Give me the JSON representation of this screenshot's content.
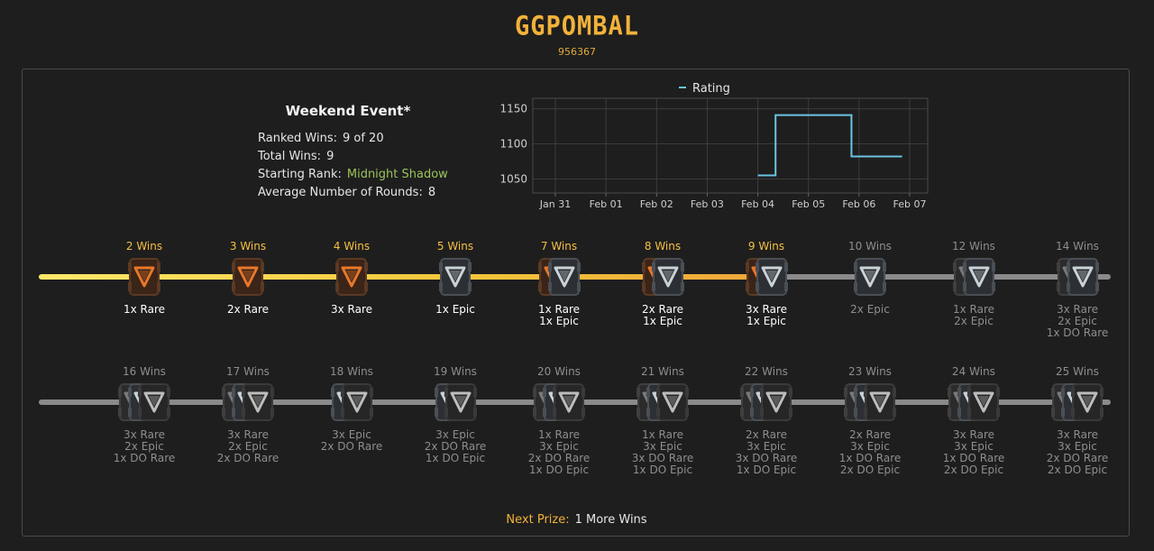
{
  "player": {
    "name": "GGPOMBAL",
    "id": "956367"
  },
  "event": {
    "title": "Weekend Event*",
    "stats": [
      {
        "label": "Ranked Wins:",
        "value": "9 of 20"
      },
      {
        "label": "Total Wins:",
        "value": "9"
      },
      {
        "label": "Starting Rank:",
        "value": "Midnight Shadow"
      },
      {
        "label": "Average Number of Rounds:",
        "value": "8"
      }
    ]
  },
  "colors": {
    "accent": "#f2b23a",
    "rank": "#9bc35a",
    "line": "#6cc3e4",
    "track_active": "#f5c63a",
    "track_locked": "#8a8a8a"
  },
  "chart_data": {
    "type": "line",
    "title": "",
    "legend": "top",
    "series": [
      {
        "name": "Rating",
        "style": "step",
        "points": [
          {
            "x": "Feb 04 (early)",
            "y": 1055
          },
          {
            "x": "Feb 04 (mid)",
            "y": 1055
          },
          {
            "x": "Feb 04 (mid)",
            "y": 1141
          },
          {
            "x": "Feb 05 (late)",
            "y": 1141
          },
          {
            "x": "Feb 05 (late)",
            "y": 1082
          },
          {
            "x": "Feb 06 (late)",
            "y": 1082
          }
        ]
      }
    ],
    "x_ticks": [
      "Jan 31",
      "Feb 01",
      "Feb 02",
      "Feb 03",
      "Feb 04",
      "Feb 05",
      "Feb 06",
      "Feb 07"
    ],
    "y_ticks": [
      1050,
      1100,
      1150
    ],
    "ylim": [
      1030,
      1165
    ],
    "grid": true
  },
  "milestones_row1": [
    {
      "label": "2 Wins",
      "rewards": [
        "1x Rare"
      ],
      "earned": true,
      "chests": [
        "rare"
      ]
    },
    {
      "label": "3 Wins",
      "rewards": [
        "2x Rare"
      ],
      "earned": true,
      "chests": [
        "rare"
      ]
    },
    {
      "label": "4 Wins",
      "rewards": [
        "3x Rare"
      ],
      "earned": true,
      "chests": [
        "rare"
      ]
    },
    {
      "label": "5 Wins",
      "rewards": [
        "1x Epic"
      ],
      "earned": true,
      "chests": [
        "epic"
      ]
    },
    {
      "label": "7 Wins",
      "rewards": [
        "1x Rare",
        "1x Epic"
      ],
      "earned": true,
      "chests": [
        "rare",
        "epic"
      ]
    },
    {
      "label": "8 Wins",
      "rewards": [
        "2x Rare",
        "1x Epic"
      ],
      "earned": true,
      "chests": [
        "rare",
        "epic"
      ]
    },
    {
      "label": "9 Wins",
      "rewards": [
        "3x Rare",
        "1x Epic"
      ],
      "earned": true,
      "chests": [
        "rare",
        "epic"
      ]
    },
    {
      "label": "10 Wins",
      "rewards": [
        "2x Epic"
      ],
      "earned": false,
      "chests": [
        "epic"
      ]
    },
    {
      "label": "12 Wins",
      "rewards": [
        "1x Rare",
        "2x Epic"
      ],
      "earned": false,
      "chests": [
        "rare",
        "epic"
      ]
    },
    {
      "label": "14 Wins",
      "rewards": [
        "3x Rare",
        "2x Epic",
        "1x DO Rare"
      ],
      "earned": false,
      "chests": [
        "rare",
        "epic"
      ]
    }
  ],
  "milestones_row2": [
    {
      "label": "16 Wins",
      "rewards": [
        "3x Rare",
        "2x Epic",
        "1x DO Rare"
      ],
      "earned": false,
      "chests": [
        "rare",
        "epic",
        "do"
      ]
    },
    {
      "label": "17 Wins",
      "rewards": [
        "3x Rare",
        "2x Epic",
        "2x DO Rare"
      ],
      "earned": false,
      "chests": [
        "rare",
        "epic",
        "do"
      ]
    },
    {
      "label": "18 Wins",
      "rewards": [
        "3x Epic",
        "2x DO Rare"
      ],
      "earned": false,
      "chests": [
        "epic",
        "do"
      ]
    },
    {
      "label": "19 Wins",
      "rewards": [
        "3x Epic",
        "2x DO Rare",
        "1x DO Epic"
      ],
      "earned": false,
      "chests": [
        "epic",
        "do"
      ]
    },
    {
      "label": "20 Wins",
      "rewards": [
        "1x Rare",
        "3x Epic",
        "2x DO Rare",
        "1x DO Epic"
      ],
      "earned": false,
      "chests": [
        "rare",
        "epic",
        "do"
      ]
    },
    {
      "label": "21 Wins",
      "rewards": [
        "1x Rare",
        "3x Epic",
        "3x DO Rare",
        "1x DO Epic"
      ],
      "earned": false,
      "chests": [
        "rare",
        "epic",
        "do"
      ]
    },
    {
      "label": "22 Wins",
      "rewards": [
        "2x Rare",
        "3x Epic",
        "3x DO Rare",
        "1x DO Epic"
      ],
      "earned": false,
      "chests": [
        "rare",
        "epic",
        "do"
      ]
    },
    {
      "label": "23 Wins",
      "rewards": [
        "2x Rare",
        "3x Epic",
        "1x DO Rare",
        "2x DO Epic"
      ],
      "earned": false,
      "chests": [
        "rare",
        "epic",
        "do"
      ]
    },
    {
      "label": "24 Wins",
      "rewards": [
        "3x Rare",
        "3x Epic",
        "1x DO Rare",
        "2x DO Epic"
      ],
      "earned": false,
      "chests": [
        "rare",
        "epic",
        "do"
      ]
    },
    {
      "label": "25 Wins",
      "rewards": [
        "3x Rare",
        "3x Epic",
        "2x DO Rare",
        "2x DO Epic"
      ],
      "earned": false,
      "chests": [
        "rare",
        "epic",
        "do"
      ]
    }
  ],
  "progress": {
    "ranked_wins": 9,
    "row1_fill_to_index": 6
  },
  "next_prize": {
    "label": "Next Prize:",
    "value": "1 More Wins"
  }
}
